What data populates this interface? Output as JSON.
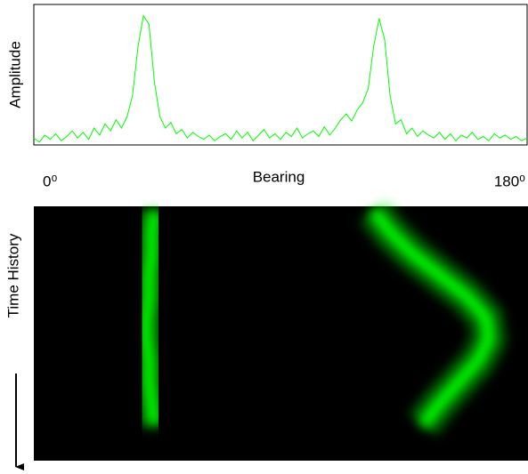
{
  "chart_data": [
    {
      "type": "line",
      "x_label": "Bearing",
      "y_label": "Amplitude",
      "color": "#00ff00",
      "xlim": [
        0,
        180
      ],
      "ylim": [
        0,
        1
      ],
      "xticks": [
        {
          "value": 0,
          "label": "0⁰"
        },
        {
          "value": 180,
          "label": "180⁰"
        }
      ],
      "x": [
        0,
        2,
        4,
        6,
        8,
        10,
        12,
        14,
        16,
        18,
        20,
        22,
        24,
        26,
        28,
        30,
        32,
        34,
        36,
        38,
        40,
        42,
        44,
        46,
        48,
        50,
        52,
        54,
        56,
        58,
        60,
        62,
        64,
        66,
        68,
        70,
        72,
        74,
        76,
        78,
        80,
        82,
        84,
        86,
        88,
        90,
        92,
        94,
        96,
        98,
        100,
        102,
        104,
        106,
        108,
        110,
        112,
        114,
        116,
        118,
        120,
        122,
        124,
        126,
        128,
        130,
        132,
        134,
        136,
        138,
        140,
        142,
        144,
        146,
        148,
        150,
        152,
        154,
        156,
        158,
        160,
        162,
        164,
        166,
        168,
        170,
        172,
        174,
        176,
        178,
        180
      ],
      "values": [
        0.05,
        0.02,
        0.07,
        0.04,
        0.08,
        0.03,
        0.06,
        0.1,
        0.05,
        0.09,
        0.04,
        0.12,
        0.07,
        0.15,
        0.1,
        0.18,
        0.12,
        0.2,
        0.35,
        0.7,
        0.92,
        0.86,
        0.45,
        0.2,
        0.12,
        0.16,
        0.08,
        0.11,
        0.05,
        0.09,
        0.06,
        0.04,
        0.07,
        0.03,
        0.06,
        0.08,
        0.04,
        0.1,
        0.05,
        0.09,
        0.03,
        0.07,
        0.11,
        0.05,
        0.08,
        0.04,
        0.09,
        0.06,
        0.12,
        0.05,
        0.08,
        0.1,
        0.06,
        0.13,
        0.07,
        0.12,
        0.18,
        0.22,
        0.17,
        0.25,
        0.3,
        0.4,
        0.7,
        0.9,
        0.75,
        0.35,
        0.15,
        0.18,
        0.08,
        0.12,
        0.06,
        0.1,
        0.07,
        0.05,
        0.09,
        0.04,
        0.08,
        0.03,
        0.07,
        0.05,
        0.09,
        0.04,
        0.06,
        0.03,
        0.08,
        0.05,
        0.07,
        0.04,
        0.06,
        0.03,
        0.05
      ]
    },
    {
      "type": "waterfall",
      "y_label": "Time History",
      "xlim": [
        0,
        180
      ],
      "tracks": [
        {
          "color": "#00ff00",
          "values": [
            44,
            43,
            43,
            42,
            42,
            41,
            41,
            42,
            42,
            43,
            44
          ]
        },
        {
          "color": "#00ff00",
          "values": [
            124,
            130,
            138,
            148,
            158,
            165,
            166,
            162,
            155,
            148,
            142
          ]
        }
      ]
    }
  ]
}
